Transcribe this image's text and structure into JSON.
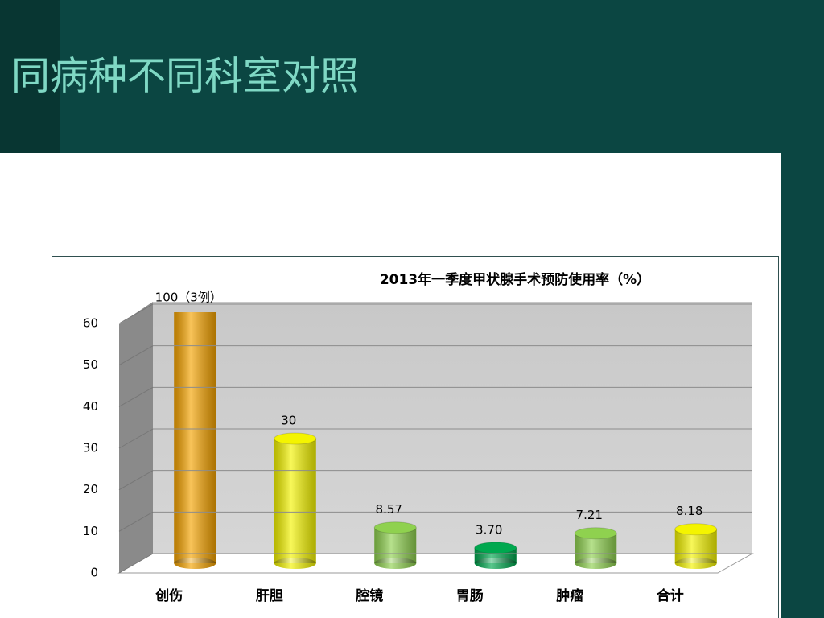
{
  "slide_title": "同病种不同科室对照",
  "chart_data": {
    "type": "bar3d",
    "title": "2013年一季度甲状腺手术预防使用率（%）",
    "categories": [
      "创伤",
      "肝胆",
      "腔镜",
      "胃肠",
      "肿瘤",
      "合计"
    ],
    "values": [
      100,
      30,
      8.57,
      3.7,
      7.21,
      8.18
    ],
    "value_labels": [
      "100（3例）",
      "30",
      "8.57",
      "3.70",
      "7.21",
      "8.18"
    ],
    "colors": [
      "#f5a300",
      "#f4f400",
      "#8fd14f",
      "#00a84f",
      "#8fd14f",
      "#f4f400"
    ],
    "ylim": [
      0,
      60
    ],
    "yticks": [
      0,
      10,
      20,
      30,
      40,
      50,
      60
    ],
    "grid": true
  }
}
